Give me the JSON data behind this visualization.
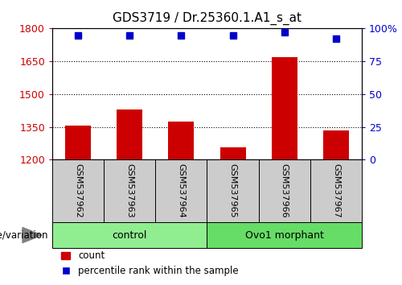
{
  "title": "GDS3719 / Dr.25360.1.A1_s_at",
  "samples": [
    "GSM537962",
    "GSM537963",
    "GSM537964",
    "GSM537965",
    "GSM537966",
    "GSM537967"
  ],
  "bar_values": [
    1355,
    1430,
    1375,
    1255,
    1670,
    1335
  ],
  "percentile_values": [
    95,
    95,
    95,
    95,
    97,
    92
  ],
  "bar_color": "#cc0000",
  "dot_color": "#0000cc",
  "ylim_left": [
    1200,
    1800
  ],
  "ylim_right": [
    0,
    100
  ],
  "yticks_left": [
    1200,
    1350,
    1500,
    1650,
    1800
  ],
  "yticks_right": [
    0,
    25,
    50,
    75,
    100
  ],
  "ytick_labels_right": [
    "0",
    "25",
    "50",
    "75",
    "100%"
  ],
  "groups": [
    {
      "label": "control",
      "indices": [
        0,
        1,
        2
      ],
      "color": "#90ee90"
    },
    {
      "label": "Ovo1 morphant",
      "indices": [
        3,
        4,
        5
      ],
      "color": "#66dd66"
    }
  ],
  "genotype_label": "genotype/variation",
  "legend_bar_label": "count",
  "legend_dot_label": "percentile rank within the sample",
  "background_color": "#ffffff",
  "plot_bg_color": "#ffffff",
  "tick_color_left": "#cc0000",
  "tick_color_right": "#0000cc",
  "grid_color": "#000000",
  "bar_width": 0.5,
  "xlabel_area_bg": "#cccccc",
  "label_fontsize": 8.5,
  "title_fontsize": 11
}
